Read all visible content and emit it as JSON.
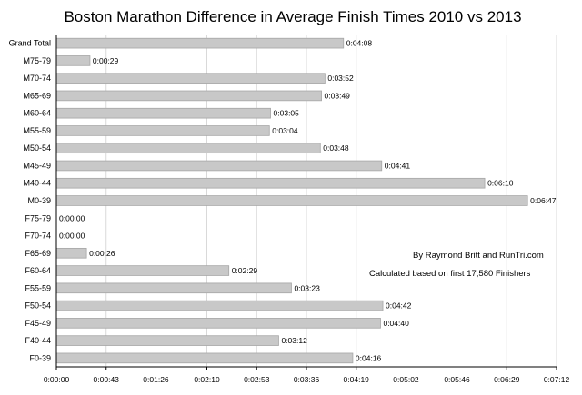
{
  "chart_data": {
    "type": "bar",
    "orientation": "horizontal",
    "title": "Boston Marathon Difference in Average Finish Times 2010 vs 2013",
    "categories": [
      "Grand Total",
      "M75-79",
      "M70-74",
      "M65-69",
      "M60-64",
      "M55-59",
      "M50-54",
      "M45-49",
      "M40-44",
      "M0-39",
      "F75-79",
      "F70-74",
      "F65-69",
      "F60-64",
      "F55-59",
      "F50-54",
      "F45-49",
      "F40-44",
      "F0-39"
    ],
    "values_seconds": [
      248,
      29,
      232,
      229,
      185,
      184,
      228,
      281,
      370,
      407,
      0,
      0,
      26,
      149,
      203,
      282,
      280,
      192,
      256
    ],
    "data_labels": [
      "0:04:08",
      "0:00:29",
      "0:03:52",
      "0:03:49",
      "0:03:05",
      "0:03:04",
      "0:03:48",
      "0:04:41",
      "0:06:10",
      "0:06:47",
      "0:00:00",
      "0:00:00",
      "0:00:26",
      "0:02:29",
      "0:03:23",
      "0:04:42",
      "0:04:40",
      "0:03:12",
      "0:04:16"
    ],
    "x_ticks_seconds": [
      0,
      43,
      86,
      130,
      173,
      216,
      259,
      302,
      346,
      389,
      432
    ],
    "x_tick_labels": [
      "0:00:00",
      "0:00:43",
      "0:01:26",
      "0:02:10",
      "0:02:53",
      "0:03:36",
      "0:04:19",
      "0:05:02",
      "0:05:46",
      "0:06:29",
      "0:07:12"
    ],
    "xlim_seconds": [
      0,
      432
    ],
    "grid": "vertical",
    "legend": "none",
    "annotations": [
      "By Raymond Britt and RunTri.com",
      "Calculated based on first 17,580 Finishers"
    ],
    "colors": {
      "bar_fill": "#c8c8c8",
      "bar_stroke": "#a6a6a6",
      "grid": "#d9d9d9"
    }
  }
}
